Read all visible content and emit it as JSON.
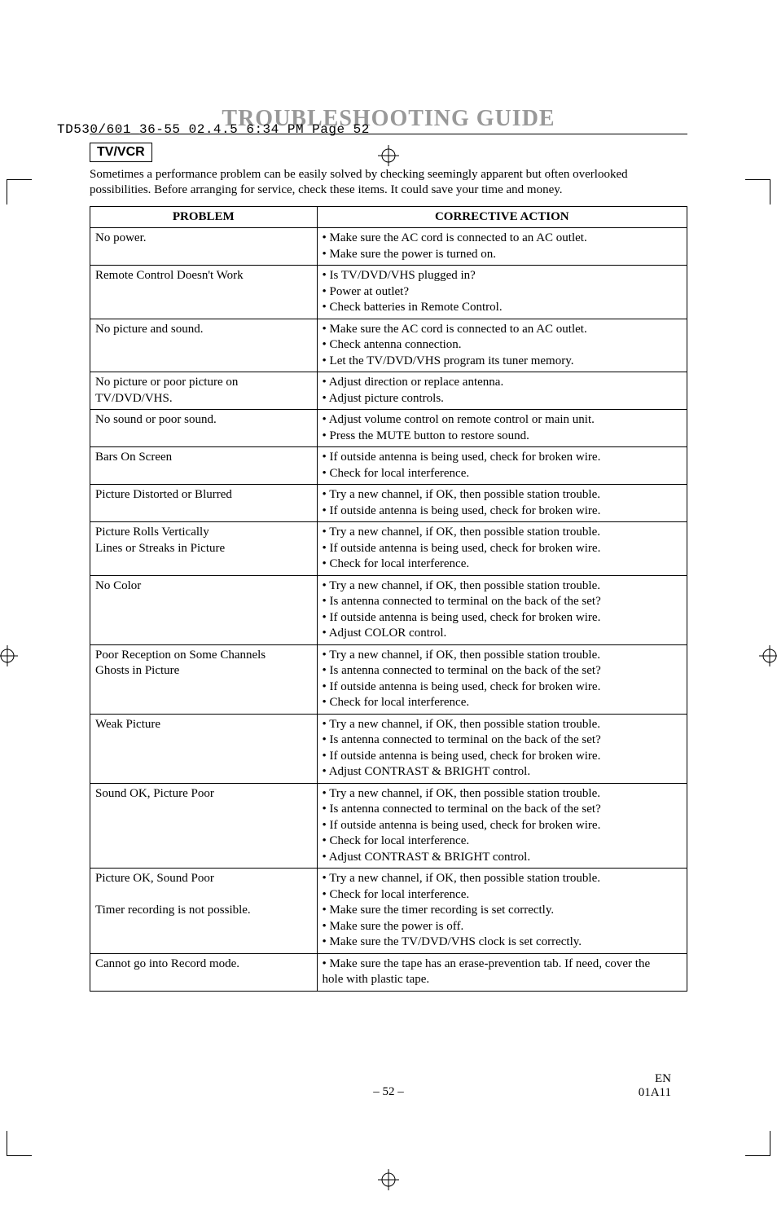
{
  "slug": "TD530/601_36-55  02.4.5 6:34 PM  Page 52",
  "title": "TROUBLESHOOTING GUIDE",
  "section_tag": "TV/VCR",
  "intro": "Sometimes a performance problem can be easily solved by checking seemingly apparent but often overlooked possibilities. Before arranging for service, check these items. It could save your time and money.",
  "headers": {
    "problem": "PROBLEM",
    "action": "CORRECTIVE ACTION"
  },
  "rows": [
    {
      "problem": "No power.",
      "action": "• Make sure the AC cord is connected to an AC outlet.\n• Make sure the power is turned on."
    },
    {
      "problem": "Remote Control Doesn't Work",
      "action": "• Is TV/DVD/VHS plugged in?\n• Power at outlet?\n• Check batteries in Remote Control."
    },
    {
      "problem": "No picture and sound.",
      "action": "• Make sure the AC cord is connected to an AC outlet.\n• Check antenna connection.\n• Let the TV/DVD/VHS program its tuner memory."
    },
    {
      "problem": "No picture or poor picture on TV/DVD/VHS.",
      "action": "• Adjust direction or replace antenna.\n• Adjust picture controls."
    },
    {
      "problem": "No sound or poor sound.",
      "action": "• Adjust volume control on remote control or main unit.\n• Press the MUTE button to restore sound."
    },
    {
      "problem": "Bars On Screen",
      "action": "• If outside antenna is being used, check for broken wire.\n• Check for local interference."
    },
    {
      "problem": "Picture Distorted or Blurred",
      "action": "• Try a new channel, if OK, then possible station trouble.\n• If outside antenna is being used, check for broken wire."
    },
    {
      "problem": "Picture Rolls Vertically\nLines or Streaks in Picture",
      "action": "• Try a new channel, if OK, then possible station trouble.\n• If outside antenna is being used, check for broken wire.\n• Check for local interference."
    },
    {
      "problem": "No Color",
      "action": "• Try a new channel, if OK, then possible station trouble.\n• Is antenna connected to terminal on the back of the set?\n• If outside antenna is being used, check for broken wire.\n• Adjust COLOR control."
    },
    {
      "problem": "Poor Reception on Some Channels\nGhosts in Picture",
      "action": "• Try a new channel, if OK, then possible station trouble.\n• Is antenna connected to terminal on the back of the set?\n• If outside antenna is being used, check for broken wire.\n• Check for local interference."
    },
    {
      "problem": "Weak Picture",
      "action": "• Try a new channel, if OK, then possible station trouble.\n• Is antenna connected to terminal on the back of the set?\n• If outside antenna is being used, check for broken wire.\n• Adjust CONTRAST & BRIGHT control."
    },
    {
      "problem": "Sound OK, Picture Poor",
      "action": "• Try a new channel, if OK, then possible station trouble.\n• Is antenna connected to terminal on the back of the set?\n• If outside antenna is being used, check for broken wire.\n• Check for local interference.\n• Adjust CONTRAST & BRIGHT control."
    },
    {
      "problem": "Picture OK, Sound Poor\n\nTimer recording is not possible.",
      "action": "• Try a new channel, if OK, then possible station trouble.\n• Check for local interference.\n• Make sure the timer recording is set correctly.\n• Make sure the power is off.\n• Make sure the TV/DVD/VHS clock is set correctly."
    },
    {
      "problem": "Cannot go into Record mode.",
      "action": "• Make sure the tape has an erase-prevention tab. If need, cover the\n  hole with plastic tape."
    }
  ],
  "footer": {
    "page": "– 52 –",
    "code_top": "EN",
    "code_bot": "01A11"
  }
}
